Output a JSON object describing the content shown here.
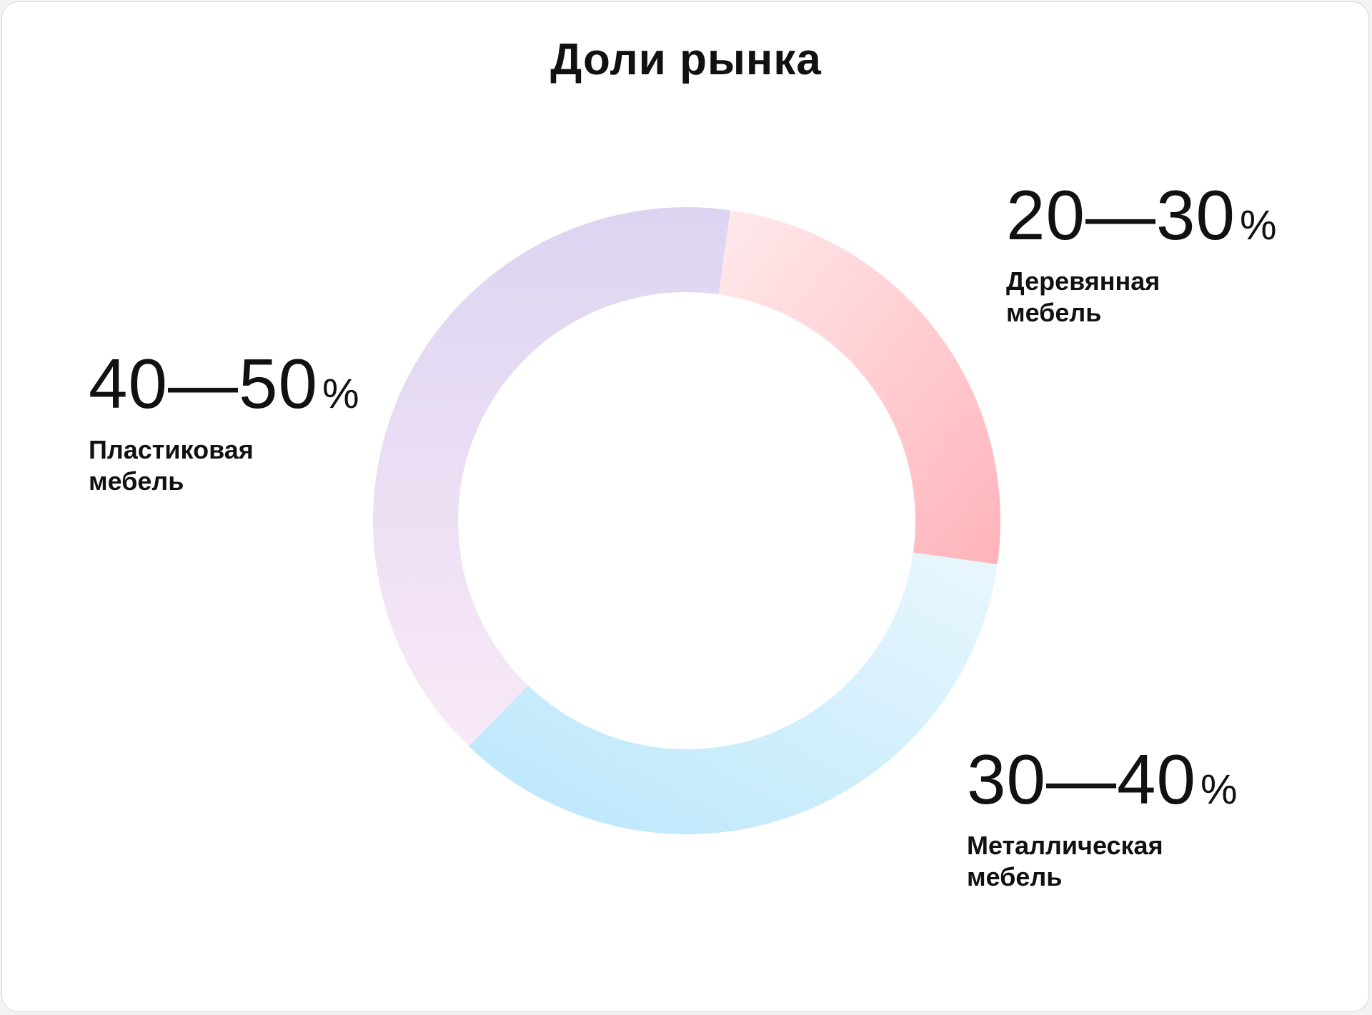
{
  "chart_data": {
    "type": "pie",
    "title": "Доли рынка",
    "categories": [
      "Деревянная мебель",
      "Металлическая мебель",
      "Пластиковая мебель"
    ],
    "value_labels": [
      "20—30%",
      "30—40%",
      "40—50%"
    ],
    "values": [
      25,
      35,
      40
    ],
    "labels": {
      "wood": {
        "range": "20—30",
        "pct": "%",
        "caption": "Деревянная мебель"
      },
      "metal": {
        "range": "30—40",
        "pct": "%",
        "caption": "Металлическая мебель"
      },
      "plastic": {
        "range": "40—50",
        "pct": "%",
        "caption": "Пластиковая мебель"
      }
    },
    "colors": {
      "wood": [
        "#ffeaec",
        "#ffb3ba"
      ],
      "metal": [
        "#b8e6fc",
        "#eaf7fd"
      ],
      "plastic": [
        "#dcd4f1",
        "#f9e9f7"
      ]
    }
  }
}
